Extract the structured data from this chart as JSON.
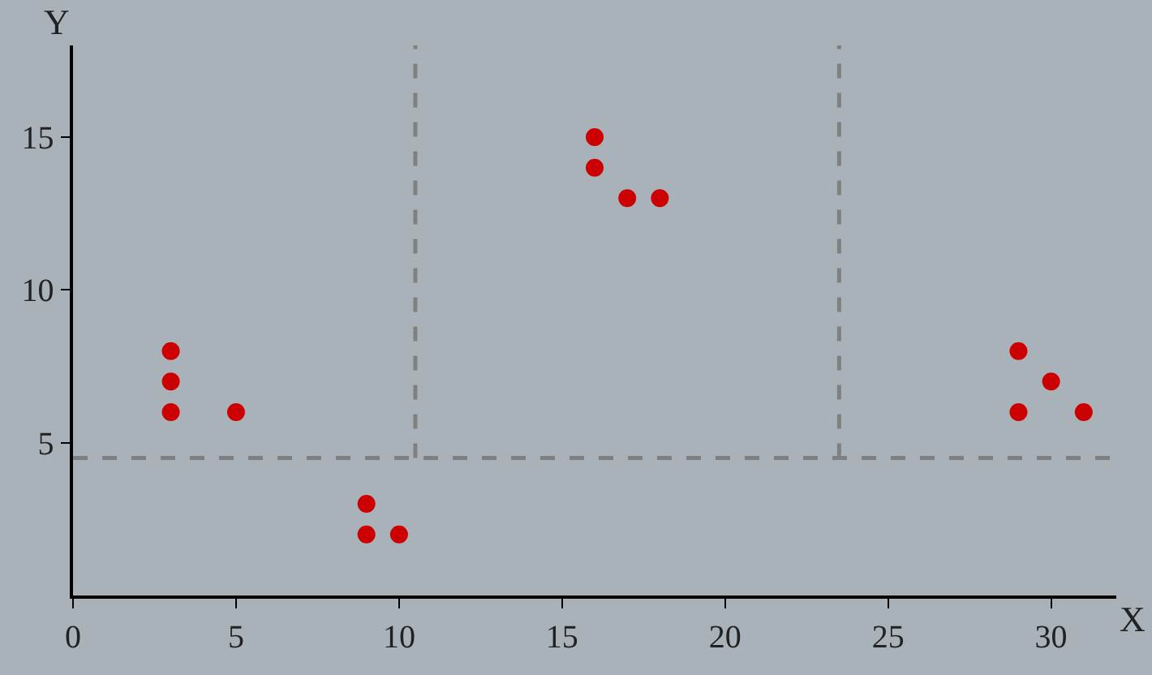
{
  "chart_data": {
    "type": "scatter",
    "xlabel": "X",
    "ylabel": "Y",
    "x": [
      3,
      3,
      3,
      5,
      9,
      9,
      10,
      16,
      16,
      17,
      18,
      29,
      29,
      30,
      31
    ],
    "series": [
      {
        "color": "#cc0000",
        "values": [
          8,
          7,
          6,
          6,
          3,
          2,
          2,
          15,
          14,
          13,
          13,
          8,
          6,
          7,
          6
        ]
      }
    ],
    "xlim": [
      0,
      32
    ],
    "ylim": [
      0,
      18
    ],
    "xticks": [
      0,
      5,
      10,
      15,
      20,
      25,
      30
    ],
    "yticks": [
      5,
      10,
      15
    ],
    "ref_lines": [
      {
        "axis": "y",
        "value": 4.5,
        "color": "#808080",
        "line_style": "dashed"
      },
      {
        "axis": "x",
        "value": 10.5,
        "color": "#808080",
        "line_style": "dashed"
      },
      {
        "axis": "x",
        "value": 23.5,
        "color": "#808080",
        "line_style": "dashed"
      }
    ],
    "grid": false,
    "marker": "circle"
  }
}
